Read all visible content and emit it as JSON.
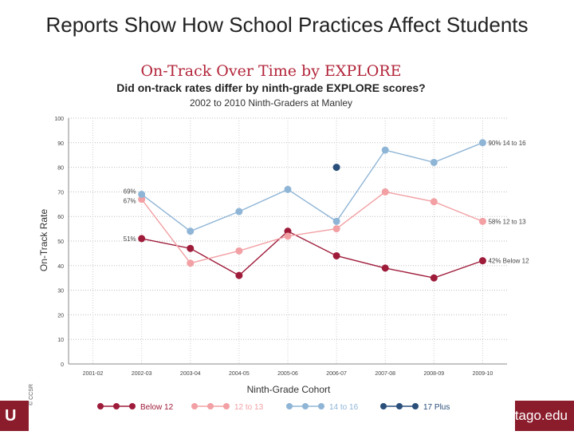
{
  "slide": {
    "title": "Reports Show How School Practices Affect Students",
    "footer_left": "U",
    "footer_right": "tago.edu",
    "watermark": "© CCSR"
  },
  "colors": {
    "footer": "#8b1c2c",
    "title_serif": "#b2253a",
    "below12": "#9e1b3a",
    "12to13": "#f2a0a4",
    "14to16": "#8fb5d6",
    "17plus": "#2a4f7a"
  },
  "chart_data": {
    "type": "line",
    "serif_title": "On-Track Over Time by EXPLORE",
    "title": "Did on-track rates differ by ninth-grade EXPLORE scores?",
    "subtitle": "2002 to 2010 Ninth-Graders at Manley",
    "xlabel": "Ninth-Grade Cohort",
    "ylabel": "On-Track Rate",
    "ylim": [
      0,
      100
    ],
    "yticks": [
      0,
      10,
      20,
      30,
      40,
      50,
      60,
      70,
      80,
      90,
      100
    ],
    "categories": [
      "2001-02",
      "2002-03",
      "2003-04",
      "2004-05",
      "2005-06",
      "2006-07",
      "2007-08",
      "2008-09",
      "2009-10"
    ],
    "grid": true,
    "series": [
      {
        "name": "Below 12",
        "key": "below12",
        "values": [
          null,
          51,
          47,
          36,
          54,
          44,
          39,
          35,
          42
        ]
      },
      {
        "name": "12 to 13",
        "key": "12to13",
        "values": [
          null,
          67,
          41,
          46,
          52,
          55,
          70,
          66,
          58
        ]
      },
      {
        "name": "14 to 16",
        "key": "14to16",
        "values": [
          null,
          69,
          54,
          62,
          71,
          58,
          87,
          82,
          90
        ]
      },
      {
        "name": "17 Plus",
        "key": "17plus",
        "values": [
          null,
          null,
          null,
          null,
          null,
          80,
          null,
          null,
          null
        ]
      }
    ],
    "annotations": [
      {
        "series": "14to16",
        "index": 1,
        "text": "69%",
        "side": "left"
      },
      {
        "series": "12to13",
        "index": 1,
        "text": "67%",
        "side": "left"
      },
      {
        "series": "below12",
        "index": 1,
        "text": "51%",
        "side": "left"
      },
      {
        "series": "14to16",
        "index": 8,
        "text": "90% 14 to 16",
        "side": "right"
      },
      {
        "series": "12to13",
        "index": 8,
        "text": "58% 12 to 13",
        "side": "right"
      },
      {
        "series": "below12",
        "index": 8,
        "text": "42% Below 12",
        "side": "right"
      }
    ],
    "legend_position": "bottom"
  }
}
